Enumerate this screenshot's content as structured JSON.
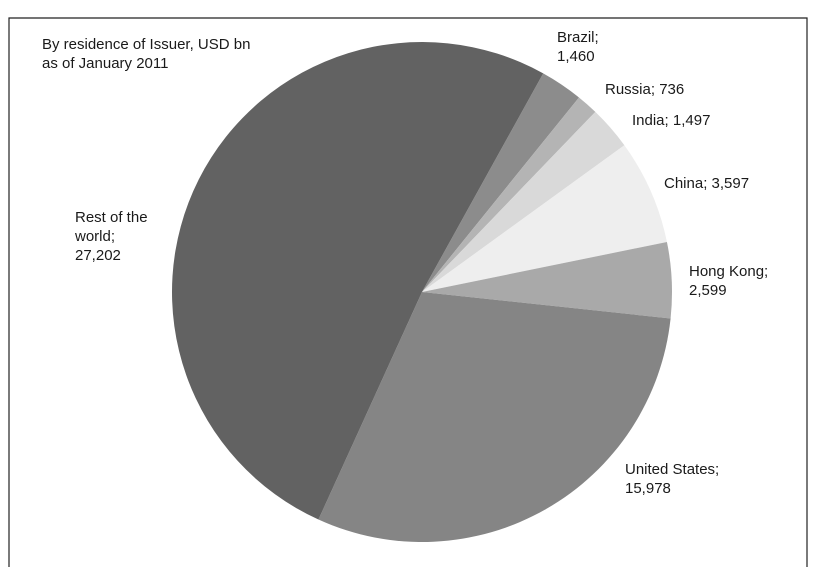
{
  "chart_data": {
    "type": "pie",
    "subtitle": [
      "By residence of Issuer, USD bn",
      "as of January 2011"
    ],
    "categories": [
      "Brazil;",
      "Russia;",
      "India;",
      "China;",
      "Hong Kong;",
      "United States;",
      "Rest of the world;"
    ],
    "values": [
      1460,
      736,
      1497,
      3597,
      2599,
      15978,
      27202
    ],
    "value_labels": [
      "1,460",
      "736",
      "1,497",
      "3,597",
      "2,599",
      "15,978",
      "27,202"
    ],
    "colors": [
      "#8c8c8c",
      "#b4b4b4",
      "#d9d9d9",
      "#eeeeee",
      "#a9a9a9",
      "#858585",
      "#626262"
    ]
  }
}
